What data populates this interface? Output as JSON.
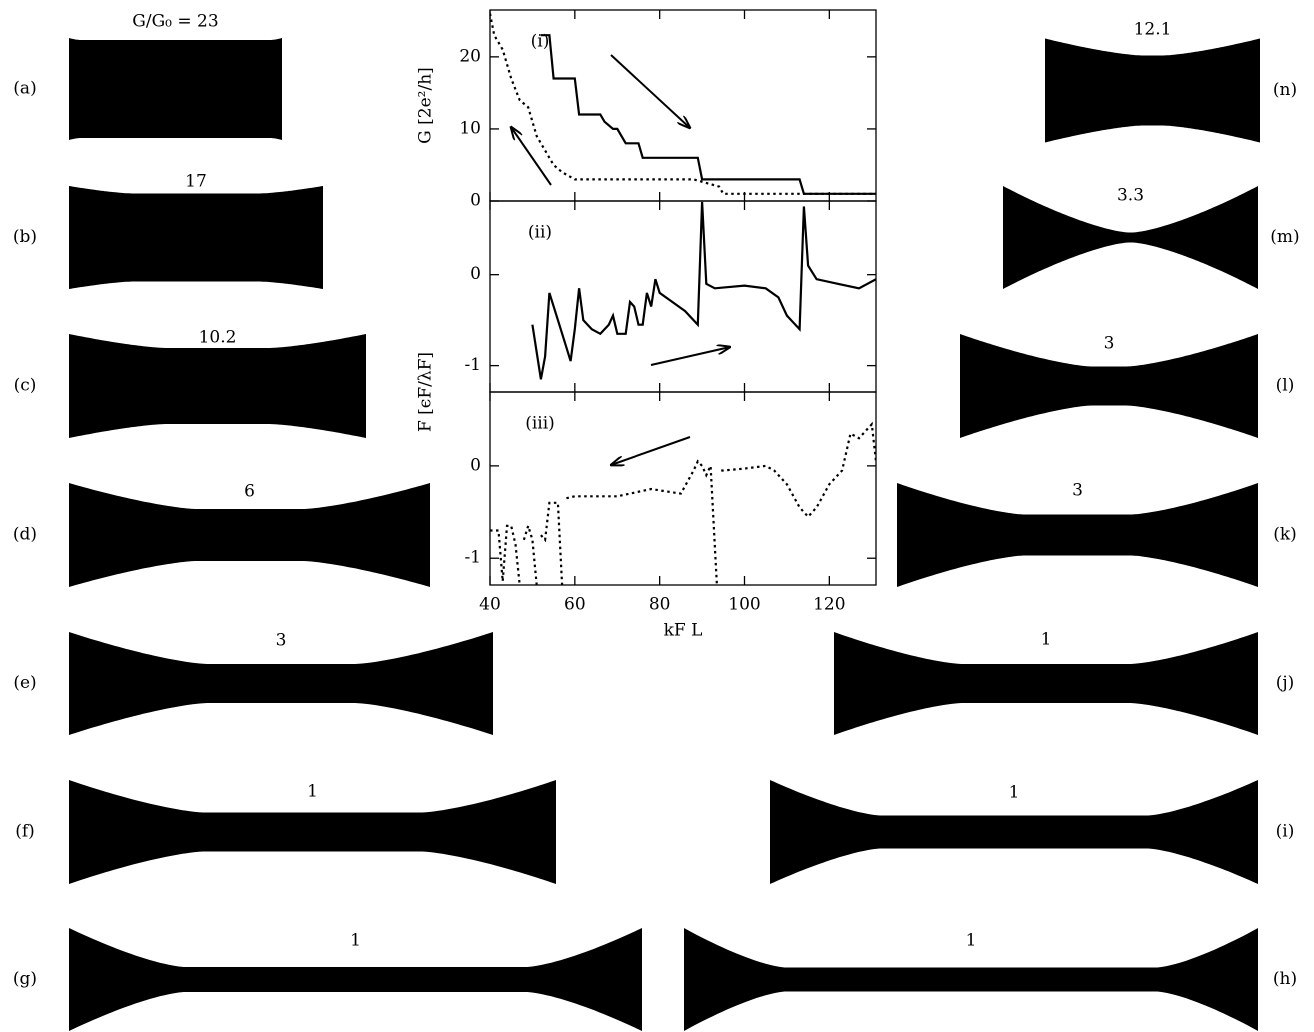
{
  "chart_data": [
    {
      "type": "line",
      "label": "(i)",
      "ylabel": "G [2e²/h]",
      "xlim": [
        40,
        131
      ],
      "ylim": [
        0,
        26.5
      ],
      "yticks": [
        0,
        10,
        20
      ],
      "series": [
        {
          "color": "#000000",
          "dash": "solid",
          "x": [
            52,
            54,
            55,
            60,
            61,
            66,
            67,
            69,
            70,
            71,
            72,
            75,
            76,
            89,
            90,
            113,
            114,
            131
          ],
          "values": [
            23,
            23,
            17,
            17,
            12,
            12,
            11,
            10,
            10,
            9,
            8,
            8,
            6,
            6,
            3,
            3,
            1,
            1
          ]
        },
        {
          "color": "#000000",
          "dash": "dotted",
          "x": [
            40,
            41,
            43,
            45,
            47,
            49,
            51,
            53,
            55,
            57,
            60,
            88,
            94,
            95,
            131
          ],
          "values": [
            26,
            23,
            21,
            17,
            14,
            13,
            9,
            7,
            5,
            4,
            3,
            3,
            2,
            1,
            1
          ]
        }
      ]
    },
    {
      "type": "line",
      "label": "(ii)",
      "ylabel": "F [ϵF/λF]",
      "xlim": [
        40,
        131
      ],
      "ylim": [
        -1.29,
        0.81
      ],
      "yticks": [
        -1,
        0
      ],
      "series": [
        {
          "color": "#000000",
          "dash": "solid",
          "x": [
            50,
            52,
            53,
            54,
            56,
            58,
            59,
            60,
            61,
            62,
            64,
            66,
            68,
            69,
            70,
            72,
            73,
            74,
            75,
            76,
            77,
            78,
            79,
            80,
            83,
            86,
            89,
            90,
            91,
            93,
            100,
            105,
            108,
            110,
            113,
            114,
            115,
            117,
            122,
            127,
            131
          ],
          "values": [
            -0.55,
            -1.15,
            -0.9,
            -0.2,
            -0.5,
            -0.8,
            -0.95,
            -0.6,
            -0.15,
            -0.5,
            -0.6,
            -0.65,
            -0.55,
            -0.45,
            -0.65,
            -0.65,
            -0.3,
            -0.35,
            -0.55,
            -0.55,
            -0.2,
            -0.35,
            -0.05,
            -0.2,
            -0.3,
            -0.4,
            -0.55,
            0.8,
            -0.1,
            -0.15,
            -0.12,
            -0.15,
            -0.25,
            -0.45,
            -0.6,
            0.75,
            0.1,
            -0.05,
            -0.1,
            -0.15,
            -0.05
          ]
        }
      ]
    },
    {
      "type": "line",
      "label": "(iii)",
      "xlabel": "kF L",
      "xlim": [
        40,
        131
      ],
      "ylim": [
        -1.29,
        0.8
      ],
      "yticks": [
        -1,
        0
      ],
      "xticks": [
        40,
        60,
        80,
        100,
        120
      ],
      "series": [
        {
          "color": "#000000",
          "dash": "dotted",
          "x": [
            40,
            42,
            43,
            44,
            45,
            46,
            47,
            47.5,
            48,
            49,
            50,
            51,
            51.5,
            52,
            53,
            54,
            55,
            56,
            57,
            57.5,
            58,
            60,
            70,
            78,
            82,
            85,
            88,
            89,
            90,
            91,
            92,
            93.5,
            94,
            94.5,
            95,
            100,
            105,
            107,
            110,
            113,
            115,
            117,
            120,
            123,
            125,
            127,
            129,
            130,
            131
          ],
          "values": [
            -0.7,
            -0.7,
            -1.25,
            -0.65,
            -0.65,
            -0.85,
            -1.29,
            null,
            -0.8,
            -0.65,
            -0.8,
            -1.29,
            null,
            -0.75,
            -0.8,
            -0.4,
            -0.4,
            -0.4,
            -1.29,
            null,
            -0.35,
            -0.33,
            -0.33,
            -0.25,
            -0.28,
            -0.3,
            -0.05,
            0.05,
            0,
            -0.1,
            0,
            -1.29,
            null,
            -0.05,
            -0.05,
            -0.03,
            0,
            -0.05,
            -0.2,
            -0.45,
            -0.55,
            -0.45,
            -0.2,
            -0.05,
            0.35,
            0.3,
            0.4,
            0.45,
            0.05
          ]
        }
      ]
    }
  ],
  "wires": [
    {
      "label": "(a)",
      "G": "G/G₀ = 23"
    },
    {
      "label": "(b)",
      "G": "17"
    },
    {
      "label": "(c)",
      "G": "10.2"
    },
    {
      "label": "(d)",
      "G": "6"
    },
    {
      "label": "(e)",
      "G": "3"
    },
    {
      "label": "(f)",
      "G": "1"
    },
    {
      "label": "(g)",
      "G": "1"
    },
    {
      "label": "(h)",
      "G": "1"
    },
    {
      "label": "(i)",
      "G": "1"
    },
    {
      "label": "(j)",
      "G": "1"
    },
    {
      "label": "(k)",
      "G": "3"
    },
    {
      "label": "(l)",
      "G": "3"
    },
    {
      "label": "(m)",
      "G": "3.3"
    },
    {
      "label": "(n)",
      "G": "12.1"
    }
  ]
}
